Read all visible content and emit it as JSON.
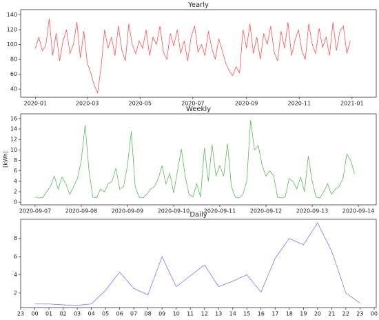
{
  "chart_data": [
    {
      "type": "line",
      "title": "Yearly",
      "color": "#ff5050",
      "x": [
        0,
        4,
        8,
        12,
        16,
        20,
        24,
        28,
        32,
        36,
        40,
        44,
        48,
        52,
        56,
        60,
        64,
        68,
        72,
        76,
        80,
        84,
        88,
        92,
        96,
        100,
        104,
        108,
        112,
        116,
        120,
        124,
        128,
        132,
        136,
        140,
        144,
        148,
        152,
        156,
        160,
        164,
        168,
        172,
        176,
        180,
        184,
        188,
        192,
        196,
        200,
        204,
        208,
        212,
        216,
        220,
        224,
        228,
        232,
        236,
        240,
        244,
        248,
        252,
        256,
        260,
        264,
        268,
        272,
        276,
        280,
        284,
        288,
        292,
        296,
        300,
        304,
        308,
        312,
        316,
        320,
        324,
        328,
        332,
        336,
        340,
        344,
        348,
        352,
        356,
        360,
        364
      ],
      "values": [
        95,
        110,
        92,
        98,
        135,
        85,
        115,
        78,
        105,
        120,
        88,
        100,
        130,
        82,
        118,
        75,
        62,
        45,
        35,
        70,
        120,
        95,
        110,
        85,
        125,
        92,
        78,
        128,
        100,
        88,
        105,
        95,
        120,
        85,
        110,
        100,
        125,
        90,
        80,
        115,
        98,
        120,
        88,
        105,
        78,
        110,
        125,
        90,
        100,
        85,
        118,
        95,
        80,
        108,
        92,
        75,
        65,
        58,
        70,
        62,
        120,
        95,
        128,
        88,
        110,
        80,
        115,
        100,
        125,
        90,
        78,
        118,
        95,
        130,
        85,
        105,
        120,
        92,
        80,
        128,
        100,
        88,
        122,
        96,
        110,
        85,
        130,
        92,
        118,
        125,
        88,
        105
      ],
      "xlim": [
        -17,
        394
      ],
      "xticks": [
        {
          "value": 0,
          "label": "2020-01"
        },
        {
          "value": 60,
          "label": "2020-03"
        },
        {
          "value": 121,
          "label": "2020-05"
        },
        {
          "value": 182,
          "label": "2020-07"
        },
        {
          "value": 244,
          "label": "2020-09"
        },
        {
          "value": 305,
          "label": "2020-11"
        },
        {
          "value": 366,
          "label": "2021-01"
        }
      ],
      "ylim": [
        29,
        147
      ],
      "yticks": [
        40,
        60,
        80,
        100,
        120,
        140
      ]
    },
    {
      "type": "line",
      "title": "Weekly",
      "ylabel": "[kWh]",
      "color": "#5cb85c",
      "x": [
        0,
        2,
        4,
        6,
        8,
        10,
        12,
        14,
        16,
        18,
        20,
        22,
        24,
        26,
        28,
        30,
        32,
        34,
        36,
        38,
        40,
        42,
        44,
        46,
        48,
        50,
        52,
        54,
        56,
        58,
        60,
        62,
        64,
        66,
        68,
        70,
        72,
        74,
        76,
        78,
        80,
        82,
        84,
        86,
        88,
        90,
        92,
        94,
        96,
        98,
        100,
        102,
        104,
        106,
        108,
        110,
        112,
        114,
        116,
        118,
        120,
        122,
        124,
        126,
        128,
        130,
        132,
        134,
        136,
        138,
        140,
        142,
        144,
        146,
        148,
        150,
        152,
        154,
        156,
        158,
        160,
        162,
        164,
        166
      ],
      "values": [
        1,
        0.8,
        0.9,
        2,
        3,
        5,
        2.5,
        4.8,
        3.5,
        1.5,
        3,
        4.5,
        8,
        14.8,
        6,
        1,
        0.8,
        2.5,
        2,
        3.5,
        4,
        6.5,
        2.5,
        3,
        7,
        13.5,
        3,
        1,
        0.8,
        1.5,
        2.5,
        3,
        4.5,
        7,
        3.5,
        5.5,
        1.8,
        6,
        10.2,
        5,
        1.5,
        1,
        3.5,
        1,
        10.4,
        4,
        11,
        5,
        7,
        5,
        11.2,
        3,
        1,
        0.8,
        1.5,
        4,
        15.7,
        10,
        10.8,
        7,
        5,
        6,
        5,
        1,
        0.8,
        1,
        4.5,
        4,
        2.5,
        4.8,
        2,
        8.8,
        4,
        1,
        0.8,
        2,
        3.5,
        1.5,
        2.5,
        3,
        4.5,
        9.2,
        8,
        5.5
      ],
      "xlim": [
        -7.5,
        177.3
      ],
      "xticks": [
        {
          "value": 0,
          "label": "2020-09-07"
        },
        {
          "value": 24,
          "label": "2020-09-08"
        },
        {
          "value": 48,
          "label": "2020-09-09"
        },
        {
          "value": 72,
          "label": "2020-09-10"
        },
        {
          "value": 96,
          "label": "2020-09-11"
        },
        {
          "value": 120,
          "label": "2020-09-12"
        },
        {
          "value": 144,
          "label": "2020-09-13"
        },
        {
          "value": 168,
          "label": "2020-09-14"
        }
      ],
      "ylim": [
        -0.5,
        16.9
      ],
      "yticks": [
        0,
        2,
        4,
        6,
        8,
        10,
        12,
        14,
        16
      ]
    },
    {
      "type": "line",
      "title": "Daily",
      "color": "#7b7bff",
      "x": [
        0,
        1,
        2,
        3,
        4,
        5,
        6,
        7,
        8,
        9,
        10,
        11,
        12,
        13,
        14,
        15,
        16,
        17,
        18,
        19,
        20,
        21,
        22,
        23
      ],
      "values": [
        0.8,
        0.8,
        0.7,
        0.65,
        0.8,
        2.3,
        4.3,
        2.5,
        1.8,
        6.0,
        2.7,
        3.9,
        5.1,
        2.7,
        3.3,
        4.0,
        2.1,
        5.8,
        8.0,
        7.3,
        9.7,
        6.6,
        2.0,
        0.9
      ],
      "xlim": [
        -1,
        24.15
      ],
      "xticks": [
        {
          "value": -1,
          "label": "23"
        },
        {
          "value": 0,
          "label": "00"
        },
        {
          "value": 1,
          "label": "01"
        },
        {
          "value": 2,
          "label": "02"
        },
        {
          "value": 3,
          "label": "03"
        },
        {
          "value": 4,
          "label": "04"
        },
        {
          "value": 5,
          "label": "05"
        },
        {
          "value": 6,
          "label": "06"
        },
        {
          "value": 7,
          "label": "07"
        },
        {
          "value": 8,
          "label": "08"
        },
        {
          "value": 9,
          "label": "09"
        },
        {
          "value": 10,
          "label": "10"
        },
        {
          "value": 11,
          "label": "11"
        },
        {
          "value": 12,
          "label": "12"
        },
        {
          "value": 13,
          "label": "13"
        },
        {
          "value": 14,
          "label": "14"
        },
        {
          "value": 15,
          "label": "15"
        },
        {
          "value": 16,
          "label": "16"
        },
        {
          "value": 17,
          "label": "17"
        },
        {
          "value": 18,
          "label": "18"
        },
        {
          "value": 19,
          "label": "19"
        },
        {
          "value": 20,
          "label": "20"
        },
        {
          "value": 21,
          "label": "21"
        },
        {
          "value": 22,
          "label": "22"
        },
        {
          "value": 23,
          "label": "23"
        },
        {
          "value": 24,
          "label": "00"
        }
      ],
      "ylim": [
        0.4,
        10.1
      ],
      "yticks": [
        2,
        4,
        6,
        8
      ]
    }
  ]
}
